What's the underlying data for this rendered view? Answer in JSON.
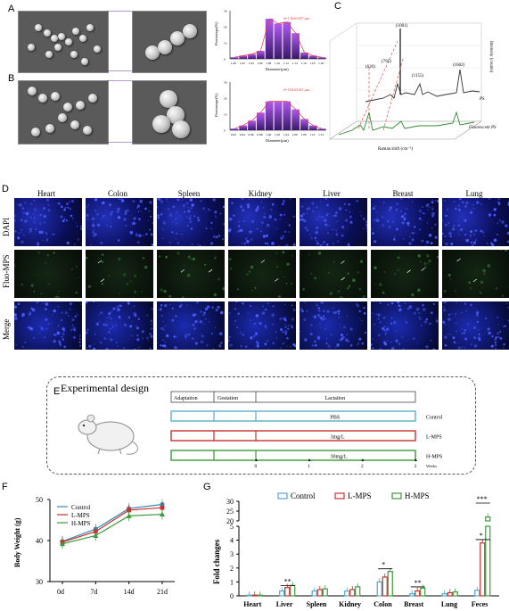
{
  "panels": {
    "A": "A",
    "B": "B",
    "C": "C",
    "D": "D",
    "E": "E",
    "F": "F",
    "G": "G"
  },
  "histA": {
    "annotation": "d=1.10±0.037 μm",
    "xlabel": "Diameter(μm)",
    "ylabel": "Percentage(%)",
    "ticks": [
      "1.00",
      "1.02",
      "1.04",
      "1.06",
      "1.08",
      "1.10",
      "1.12",
      "1.14",
      "1.16",
      "1.18",
      "1.20"
    ],
    "values": [
      1,
      2,
      3,
      5,
      25,
      22,
      23,
      16,
      4,
      2,
      1
    ]
  },
  "histB": {
    "annotation": "d=1.02±0.041 μm",
    "xlabel": "Diameter(μm)",
    "ylabel": "Percentage(%)",
    "ticks": [
      "0.92",
      "0.94",
      "0.96",
      "0.98",
      "1.00",
      "1.02",
      "1.04",
      "1.06",
      "1.08",
      "1.10",
      "1.12"
    ],
    "values": [
      1,
      3,
      6,
      11,
      18,
      18,
      18,
      13,
      7,
      3,
      1
    ]
  },
  "raman": {
    "xlabel": "Raman shift (cm⁻¹)",
    "ylabel": "Intensity (counts)",
    "peaks": [
      "(1001)",
      "(795)",
      "(620)",
      "(1155)",
      "(1602)"
    ],
    "series": [
      "PS",
      "Fluorescent PS"
    ]
  },
  "panelD": {
    "columns": [
      "Heart",
      "Colon",
      "Spleen",
      "Kidney",
      "Liver",
      "Breast",
      "Lung"
    ],
    "rows": [
      "DAPI",
      "Fluo-MPS",
      "Merge"
    ]
  },
  "panelE": {
    "title": "Experimental design",
    "phases": [
      "Adaptation",
      "Gestation",
      "Lactation"
    ],
    "groups": [
      {
        "label": "PBS",
        "name": "Control",
        "color": "#5aaecb"
      },
      {
        "label": "3mg/L",
        "name": "L-MPS",
        "color": "#c8302f"
      },
      {
        "label": "30mg/L",
        "name": "H-MPS",
        "color": "#3b9a3a"
      }
    ],
    "weeks": [
      "0",
      "1",
      "2",
      "3"
    ],
    "weeks_label": "Weeks"
  },
  "chart_data": [
    {
      "type": "line",
      "ylabel": "Body Weight (g)",
      "categories": [
        "0d",
        "7d",
        "14d",
        "21d"
      ],
      "ylim": [
        30,
        50
      ],
      "yticks": [
        "30",
        "40",
        "50"
      ],
      "series": [
        {
          "name": "Control",
          "color": "#3c8cb0",
          "values": [
            39.8,
            42.8,
            47.8,
            48.8
          ]
        },
        {
          "name": "L-MPS",
          "color": "#c8302f",
          "values": [
            39.6,
            42.2,
            47.4,
            48.0
          ]
        },
        {
          "name": "H-MPS",
          "color": "#3b9a3a",
          "values": [
            39.2,
            41.2,
            46.0,
            46.4
          ]
        }
      ]
    },
    {
      "type": "bar",
      "ylabel": "Fold changes",
      "categories": [
        "Heart",
        "Liver",
        "Spleen",
        "Kidney",
        "Colon",
        "Breast",
        "Lung",
        "Feces"
      ],
      "yticks_low": [
        "0",
        "1",
        "2",
        "3",
        "4",
        "5"
      ],
      "yticks_high": [
        "20",
        "25",
        "30"
      ],
      "series": [
        {
          "name": "Control",
          "color": "#4fa8cc",
          "values": [
            0.05,
            0.35,
            0.35,
            0.35,
            1.0,
            0.15,
            0.15,
            0.4
          ]
        },
        {
          "name": "L-MPS",
          "color": "#c8302f",
          "values": [
            0.05,
            0.6,
            0.45,
            0.45,
            1.35,
            0.35,
            0.22,
            3.8
          ]
        },
        {
          "name": "H-MPS",
          "color": "#3b9a3a",
          "values": [
            0.05,
            0.75,
            0.5,
            0.65,
            1.75,
            0.55,
            0.28,
            22
          ]
        }
      ],
      "significance": [
        "**",
        "*",
        "**",
        "*",
        "***"
      ]
    }
  ]
}
